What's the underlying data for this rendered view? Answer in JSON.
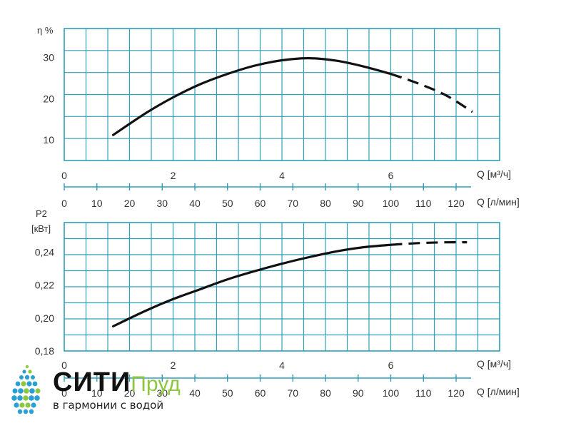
{
  "chart_data": [
    {
      "type": "line",
      "ylabel": "η %",
      "ylim": [
        5,
        37
      ],
      "yticks": [
        10,
        20,
        30
      ],
      "x_primary": {
        "label": "Q [м³/ч]",
        "lim": [
          0,
          8
        ],
        "ticks": [
          0,
          2,
          4,
          6
        ]
      },
      "x_secondary": {
        "label": "Q [л/мин]",
        "lim": [
          0,
          133.33
        ],
        "ticks": [
          0,
          10,
          20,
          30,
          40,
          50,
          60,
          70,
          80,
          90,
          100,
          110,
          120
        ]
      },
      "grid": true,
      "series": [
        {
          "values": [
            [
              0.9,
              11.2
            ],
            [
              1.5,
              16.5
            ],
            [
              2.0,
              20.3
            ],
            [
              2.5,
              23.5
            ],
            [
              3.0,
              26.0
            ],
            [
              3.5,
              28.0
            ],
            [
              4.0,
              29.3
            ],
            [
              4.5,
              29.8
            ],
            [
              5.0,
              29.2
            ],
            [
              5.5,
              27.8
            ],
            [
              6.0,
              26.0
            ]
          ],
          "style": "solid"
        },
        {
          "values": [
            [
              6.0,
              26.0
            ],
            [
              6.5,
              23.7
            ],
            [
              7.0,
              20.9
            ],
            [
              7.5,
              16.8
            ]
          ],
          "style": "dashed"
        }
      ]
    },
    {
      "type": "line",
      "ylabel": "P2 [кВт]",
      "ylim": [
        0.18,
        0.258
      ],
      "yticks": [
        "0,18",
        "0,20",
        "0,22",
        "0,24"
      ],
      "ytick_values": [
        0.18,
        0.2,
        0.22,
        0.24
      ],
      "x_primary": {
        "label": "Q [м³/ч]",
        "lim": [
          0,
          8
        ],
        "ticks": [
          0,
          2,
          4,
          6
        ]
      },
      "x_secondary": {
        "label": "Q [л/мин]",
        "lim": [
          0,
          133.33
        ],
        "ticks": [
          0,
          10,
          20,
          30,
          40,
          50,
          60,
          70,
          80,
          90,
          100,
          110,
          120
        ]
      },
      "grid": true,
      "series": [
        {
          "values": [
            [
              0.9,
              0.195
            ],
            [
              1.5,
              0.2045
            ],
            [
              2.0,
              0.2115
            ],
            [
              2.5,
              0.2175
            ],
            [
              3.0,
              0.2235
            ],
            [
              3.5,
              0.2285
            ],
            [
              4.0,
              0.233
            ],
            [
              4.5,
              0.237
            ],
            [
              5.0,
              0.2405
            ],
            [
              5.5,
              0.243
            ],
            [
              6.0,
              0.2445
            ]
          ],
          "style": "solid"
        },
        {
          "values": [
            [
              6.0,
              0.2445
            ],
            [
              6.5,
              0.2455
            ],
            [
              7.0,
              0.246
            ],
            [
              7.4,
              0.246
            ]
          ],
          "style": "dashed"
        }
      ]
    }
  ],
  "logo": {
    "name_part1": "СИТИ",
    "name_part2": "Пруд",
    "tagline": "в гармонии с водой",
    "colors": {
      "accent": "#8dc63f",
      "drops": "#2a9fd6",
      "drops_light": "#8dc63f"
    }
  },
  "colors": {
    "grid": "#2f9fb8",
    "curve": "#111111",
    "text": "#333333"
  }
}
